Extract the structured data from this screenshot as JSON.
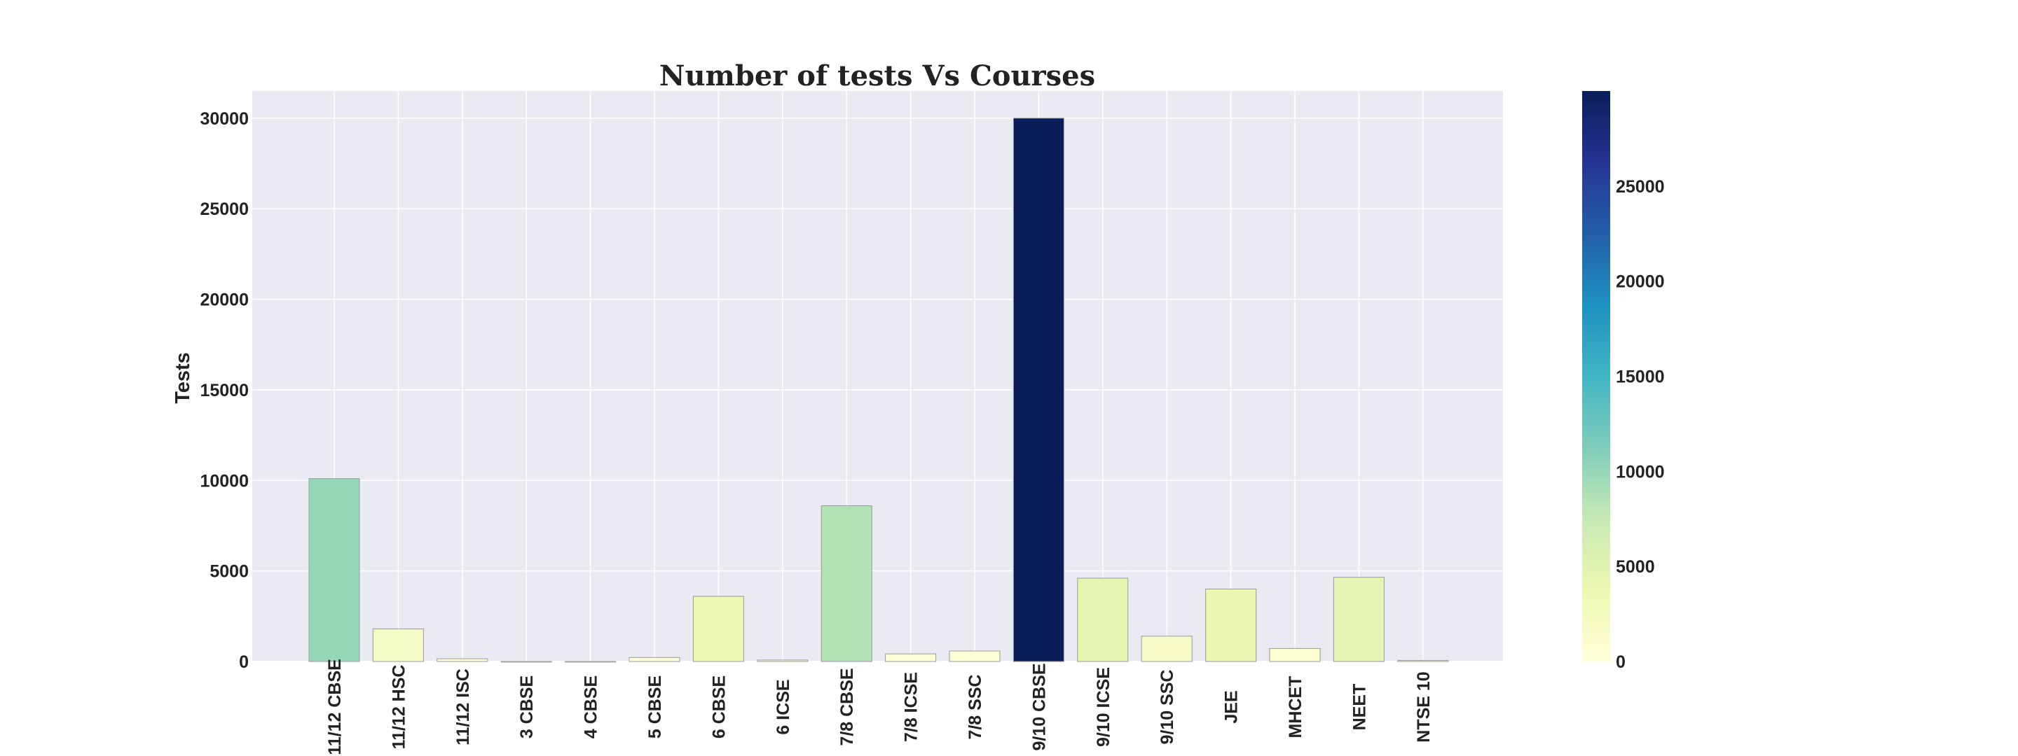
{
  "chart_data": {
    "type": "bar",
    "title": "Number of tests Vs Courses",
    "xlabel": "",
    "ylabel": "Tests",
    "ylim": [
      0,
      31500
    ],
    "yticks": [
      0,
      5000,
      10000,
      15000,
      20000,
      25000,
      30000
    ],
    "grid": true,
    "categories": [
      "11/12 CBSE",
      "11/12 HSC",
      "11/12 ISC",
      "3 CBSE",
      "4 CBSE",
      "5 CBSE",
      "6 CBSE",
      "6 ICSE",
      "7/8 CBSE",
      "7/8 ICSE",
      "7/8 SSC",
      "9/10 CBSE",
      "9/10 ICSE",
      "9/10 SSC",
      "JEE",
      "MHCET",
      "NEET",
      "NTSE 10"
    ],
    "values": [
      10100,
      1800,
      150,
      0,
      0,
      220,
      3600,
      80,
      8600,
      420,
      580,
      30000,
      4600,
      1400,
      4000,
      720,
      4650,
      60
    ],
    "colormap": "YlGnBu",
    "colorbar": {
      "range": [
        0,
        30000
      ],
      "ticks": [
        0,
        5000,
        10000,
        15000,
        20000,
        25000
      ]
    }
  }
}
